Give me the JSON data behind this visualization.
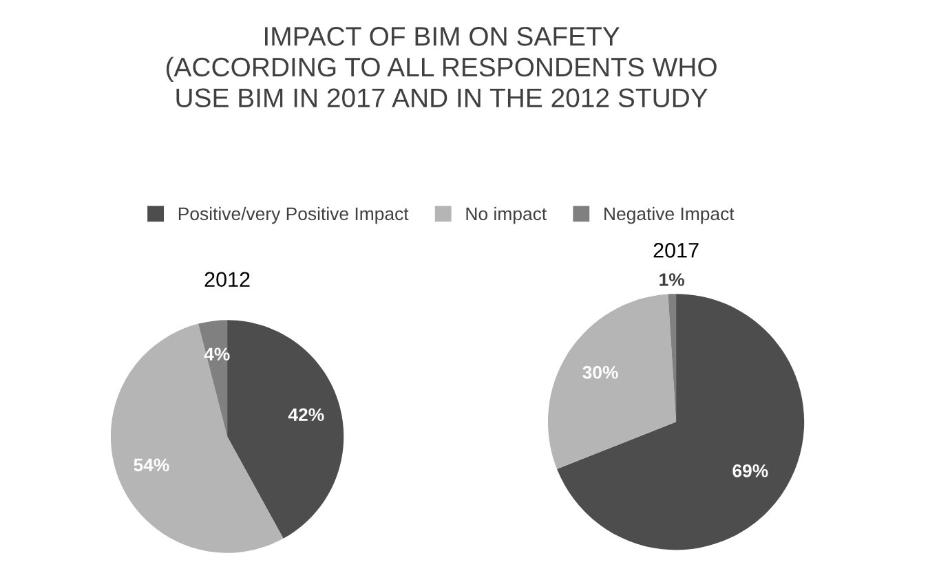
{
  "chart_data": {
    "type": "pie",
    "title": "IMPACT OF BIM ON SAFETY\n(ACCORDING TO ALL RESPONDENTS WHO\nUSE BIM IN 2017 AND IN THE 2012 STUDY",
    "categories": [
      "Positive/very Positive Impact",
      "No impact",
      "Negative Impact"
    ],
    "colors": [
      "#4d4d4d",
      "#b5b5b5",
      "#808080"
    ],
    "series": [
      {
        "name": "2012",
        "values": [
          42,
          54,
          4
        ],
        "value_labels": [
          "42%",
          "54%",
          "4%"
        ]
      },
      {
        "name": "2017",
        "values": [
          69,
          30,
          1
        ],
        "value_labels": [
          "69%",
          "30%",
          "1%"
        ]
      }
    ],
    "legend": "top"
  }
}
